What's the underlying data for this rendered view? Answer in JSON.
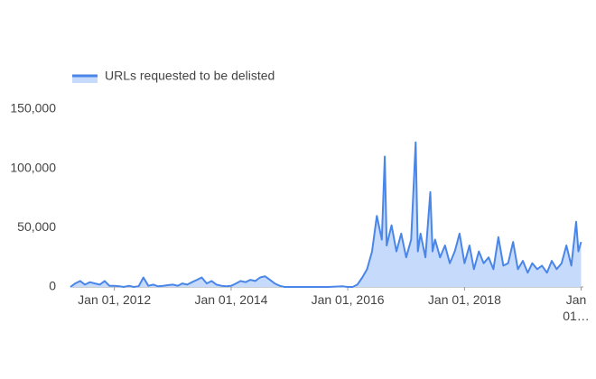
{
  "chart_data": {
    "type": "area",
    "x": [
      "2011-04-01",
      "2011-05-01",
      "2011-06-01",
      "2011-07-01",
      "2011-08-01",
      "2011-09-01",
      "2011-10-01",
      "2011-11-01",
      "2011-12-01",
      "2012-01-01",
      "2012-02-01",
      "2012-03-01",
      "2012-04-01",
      "2012-05-01",
      "2012-06-01",
      "2012-07-01",
      "2012-08-01",
      "2012-09-01",
      "2012-10-01",
      "2012-11-01",
      "2012-12-01",
      "2013-01-01",
      "2013-02-01",
      "2013-03-01",
      "2013-04-01",
      "2013-05-01",
      "2013-06-01",
      "2013-07-01",
      "2013-08-01",
      "2013-09-01",
      "2013-10-01",
      "2013-11-01",
      "2013-12-01",
      "2014-01-01",
      "2014-02-01",
      "2014-03-01",
      "2014-04-01",
      "2014-05-01",
      "2014-06-01",
      "2014-07-01",
      "2014-08-01",
      "2014-09-01",
      "2014-10-01",
      "2014-11-01",
      "2014-12-01",
      "2015-03-01",
      "2015-06-01",
      "2015-09-01",
      "2015-12-01",
      "2016-01-01",
      "2016-02-01",
      "2016-03-01",
      "2016-04-01",
      "2016-05-01",
      "2016-06-01",
      "2016-07-01",
      "2016-08-01",
      "2016-08-20",
      "2016-09-01",
      "2016-10-01",
      "2016-11-01",
      "2016-12-01",
      "2017-01-01",
      "2017-02-01",
      "2017-03-01",
      "2017-03-15",
      "2017-04-01",
      "2017-05-01",
      "2017-06-01",
      "2017-06-15",
      "2017-07-01",
      "2017-08-01",
      "2017-09-01",
      "2017-10-01",
      "2017-11-01",
      "2017-12-01",
      "2018-01-01",
      "2018-02-01",
      "2018-03-01",
      "2018-04-01",
      "2018-05-01",
      "2018-06-01",
      "2018-07-01",
      "2018-08-01",
      "2018-09-01",
      "2018-10-01",
      "2018-11-01",
      "2018-12-01",
      "2019-01-01",
      "2019-02-01",
      "2019-03-01",
      "2019-04-01",
      "2019-05-01",
      "2019-06-01",
      "2019-07-01",
      "2019-08-01",
      "2019-09-01",
      "2019-10-01",
      "2019-11-01",
      "2019-12-01",
      "2019-12-15",
      "2020-01-01"
    ],
    "series": [
      {
        "name": "URLs requested to be delisted",
        "color": "#4a86e8",
        "fill": "#c6dafc",
        "values": [
          0,
          3000,
          5000,
          2000,
          4000,
          3000,
          2000,
          5000,
          1000,
          1000,
          500,
          0,
          1000,
          0,
          500,
          8000,
          1000,
          2000,
          500,
          1000,
          1500,
          2000,
          1000,
          3000,
          2000,
          4000,
          6000,
          8000,
          3000,
          5000,
          2000,
          1000,
          500,
          1000,
          3000,
          5000,
          4000,
          6000,
          5000,
          8000,
          9000,
          6000,
          3000,
          1000,
          0,
          0,
          0,
          0,
          500,
          0,
          0,
          2000,
          8000,
          15000,
          30000,
          60000,
          40000,
          110000,
          35000,
          52000,
          30000,
          45000,
          25000,
          40000,
          122000,
          30000,
          45000,
          25000,
          80000,
          30000,
          40000,
          25000,
          35000,
          20000,
          30000,
          45000,
          20000,
          35000,
          15000,
          30000,
          20000,
          25000,
          15000,
          42000,
          18000,
          20000,
          38000,
          15000,
          22000,
          12000,
          20000,
          15000,
          18000,
          12000,
          22000,
          15000,
          20000,
          35000,
          18000,
          55000,
          30000,
          38000
        ]
      }
    ],
    "xlim": [
      "2011-04-01",
      "2020-01-15"
    ],
    "xticks": [
      {
        "value": "2012-01-01",
        "label": "Jan 01, 2012"
      },
      {
        "value": "2014-01-01",
        "label": "Jan 01, 2014"
      },
      {
        "value": "2016-01-01",
        "label": "Jan 01, 2016"
      },
      {
        "value": "2018-01-01",
        "label": "Jan 01, 2018"
      },
      {
        "value": "2020-01-01",
        "label": "Jan 01…"
      }
    ],
    "ylim": [
      0,
      150000
    ],
    "yticks": [
      0,
      {
        "value": 50000,
        "label": "50,000"
      },
      {
        "value": 100000,
        "label": "100,000"
      },
      {
        "value": 150000,
        "label": "150,000"
      }
    ],
    "grid": false,
    "legend": "top-left"
  }
}
